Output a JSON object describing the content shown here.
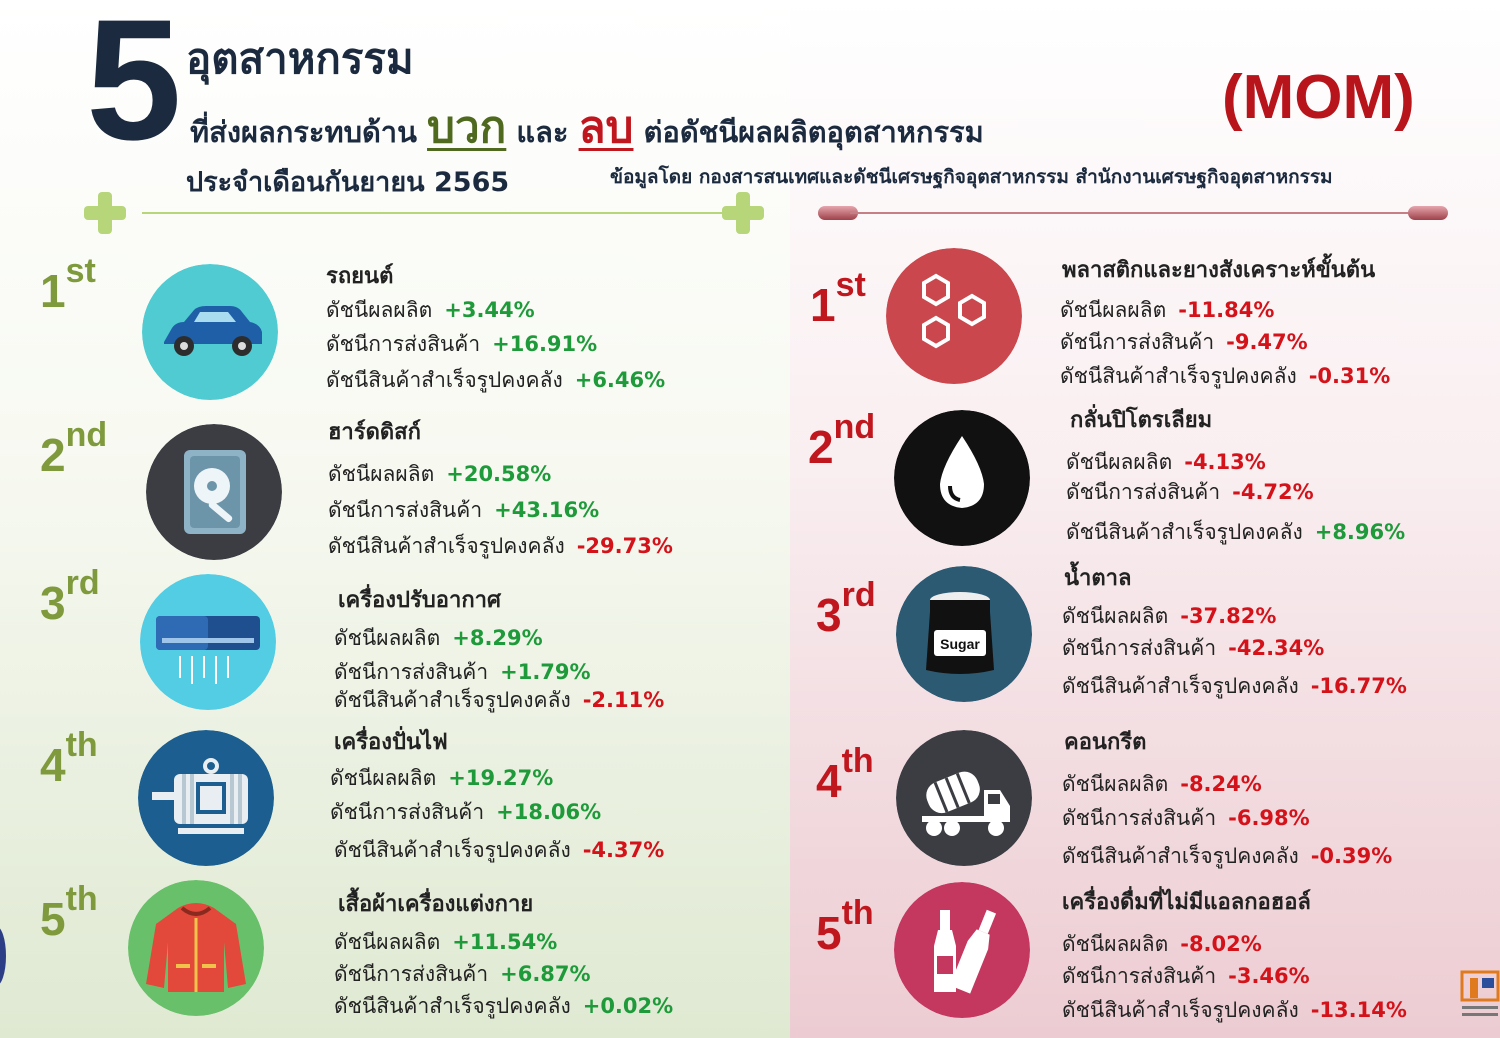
{
  "header": {
    "big_number": "5",
    "line1": "อุตสาหกรรม",
    "line2_prefix": "ที่ส่งผลกระทบด้าน",
    "line2_positive": "บวก",
    "line2_and": "และ",
    "line2_negative": "ลบ",
    "line2_suffix": "ต่อดัชนีผลผลิตอุตสาหกรรม",
    "line3": "ประจำเดือนกันยายน 2565",
    "mom": "(MOM)",
    "source": "ข้อมูลโดย กองสารสนเทศและดัชนีเศรษฐกิจอุตสาหกรรม สำนักงานเศรษฐกิจอุตสาหกรรม"
  },
  "labels": {
    "production": "ดัชนีผลผลิต",
    "shipment": "ดัชนีการส่งสินค้า",
    "inventory": "ดัชนีสินค้าสำเร็จรูปคงคลัง"
  },
  "positive": [
    {
      "rank": "1",
      "suffix": "st",
      "name": "รถยนต์",
      "icon": "car-icon",
      "color": "#4fcbd1",
      "production": "+3.44%",
      "shipment": "+16.91%",
      "inventory": "+6.46%"
    },
    {
      "rank": "2",
      "suffix": "nd",
      "name": "ฮาร์ดดิสก์",
      "icon": "hard-disk-icon",
      "color": "#3b3d43",
      "production": "+20.58%",
      "shipment": "+43.16%",
      "inventory": "-29.73%"
    },
    {
      "rank": "3",
      "suffix": "rd",
      "name": "เครื่องปรับอากาศ",
      "icon": "air-conditioner-icon",
      "color": "#52cde3",
      "production": "+8.29%",
      "shipment": "+1.79%",
      "inventory": "-2.11%"
    },
    {
      "rank": "4",
      "suffix": "th",
      "name": "เครื่องปั่นไฟ",
      "icon": "generator-icon",
      "color": "#1b5e8f",
      "production": "+19.27%",
      "shipment": "+18.06%",
      "inventory": "-4.37%"
    },
    {
      "rank": "5",
      "suffix": "th",
      "name": "เสื้อผ้าเครื่องแต่งกาย",
      "icon": "jacket-icon",
      "color": "#69c06a",
      "production": "+11.54%",
      "shipment": "+6.87%",
      "inventory": "+0.02%"
    }
  ],
  "negative": [
    {
      "rank": "1",
      "suffix": "st",
      "name": "พลาสติกและยางสังเคราะห์ขั้นต้น",
      "icon": "hexagon-molecule-icon",
      "color": "#c9474d",
      "production": "-11.84%",
      "shipment": "-9.47%",
      "inventory": "-0.31%"
    },
    {
      "rank": "2",
      "suffix": "nd",
      "name": "กลั่นปิโตรเลียม",
      "icon": "oil-drop-icon",
      "color": "#111111",
      "production": "-4.13%",
      "shipment": "-4.72%",
      "inventory": "+8.96%"
    },
    {
      "rank": "3",
      "suffix": "rd",
      "name": "น้ำตาล",
      "icon": "sugar-jar-icon",
      "color": "#2b5a72",
      "production": "-37.82%",
      "shipment": "-42.34%",
      "inventory": "-16.77%",
      "jar_label": "Sugar"
    },
    {
      "rank": "4",
      "suffix": "th",
      "name": "คอนกรีต",
      "icon": "concrete-mixer-truck-icon",
      "color": "#3b3d43",
      "production": "-8.24%",
      "shipment": "-6.98%",
      "inventory": "-0.39%"
    },
    {
      "rank": "5",
      "suffix": "th",
      "name": "เครื่องดื่มที่ไม่มีแอลกอฮอล์",
      "icon": "bottles-icon",
      "color": "#c4375f",
      "production": "-8.02%",
      "shipment": "-3.46%",
      "inventory": "-13.14%"
    }
  ]
}
